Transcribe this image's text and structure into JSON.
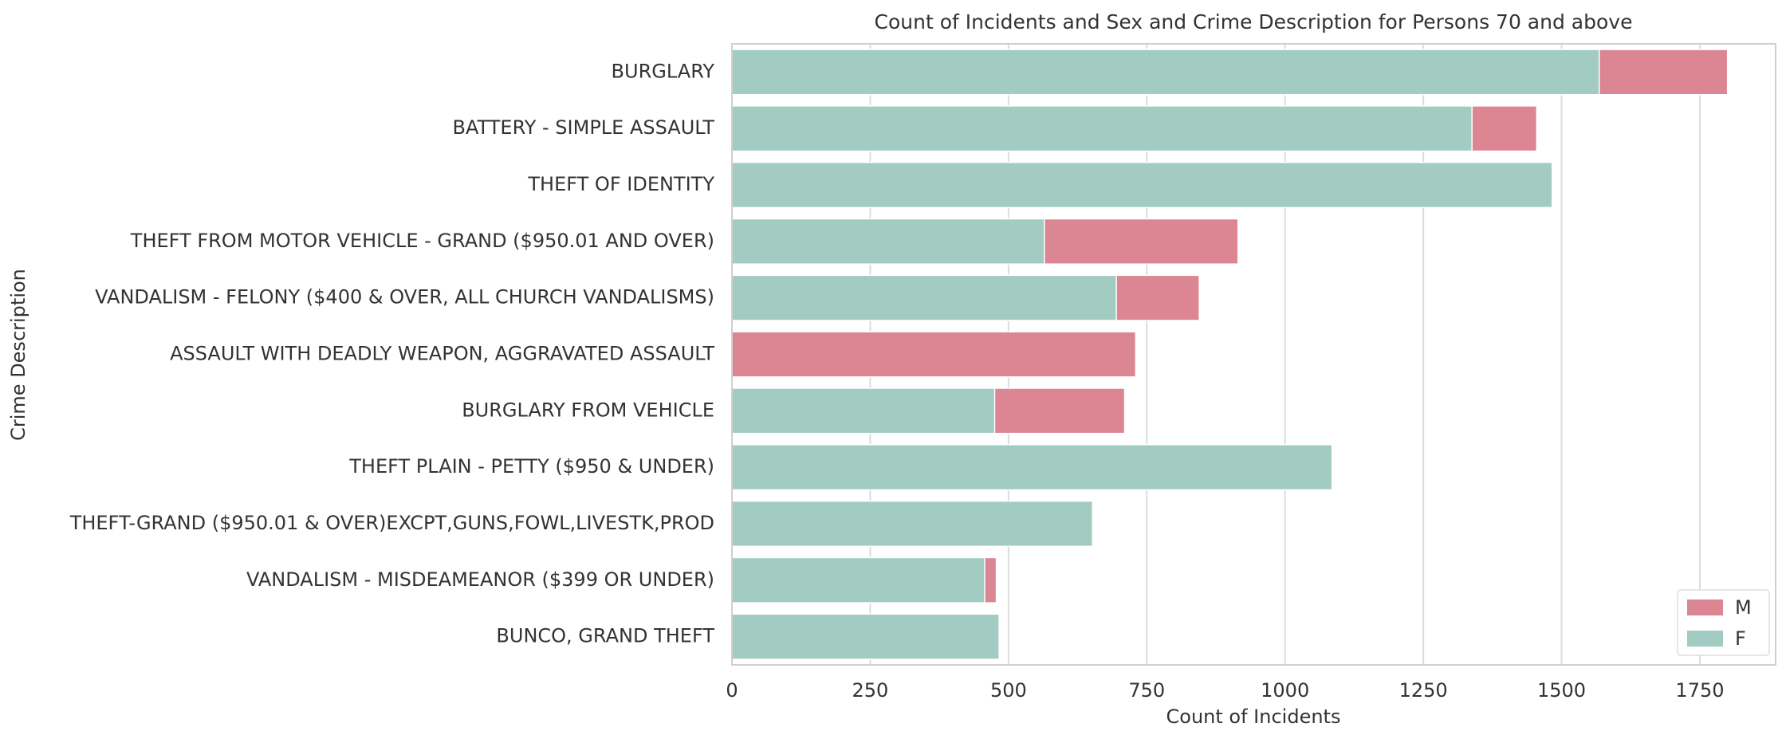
{
  "chart_data": {
    "type": "bar",
    "orientation": "horizontal",
    "overlap": true,
    "title": "Count of Incidents and Sex and Crime Description for Persons 70 and above",
    "xlabel": "Count of Incidents",
    "ylabel": "Crime Description",
    "categories": [
      "BURGLARY",
      "BATTERY - SIMPLE ASSAULT",
      "THEFT OF IDENTITY",
      "THEFT FROM MOTOR VEHICLE - GRAND ($950.01 AND OVER)",
      "VANDALISM - FELONY ($400 & OVER, ALL CHURCH VANDALISMS)",
      "ASSAULT WITH DEADLY WEAPON, AGGRAVATED ASSAULT",
      "BURGLARY FROM VEHICLE",
      "THEFT PLAIN - PETTY ($950 & UNDER)",
      "THEFT-GRAND ($950.01 & OVER)EXCPT,GUNS,FOWL,LIVESTK,PROD",
      "VANDALISM - MISDEAMEANOR ($399 OR UNDER)",
      "BUNCO, GRAND THEFT"
    ],
    "series": [
      {
        "name": "M",
        "color": "#dc8593",
        "values": [
          1800,
          1455,
          null,
          915,
          845,
          730,
          710,
          null,
          null,
          478,
          null
        ]
      },
      {
        "name": "F",
        "color": "#a2cbc2",
        "values": [
          1568,
          1338,
          1483,
          565,
          695,
          null,
          475,
          1085,
          652,
          457,
          483
        ]
      }
    ],
    "xlim": [
      0,
      1887
    ],
    "xticks": [
      0,
      250,
      500,
      750,
      1000,
      1250,
      1500,
      1750
    ],
    "grid": true,
    "legend": "lower right"
  }
}
